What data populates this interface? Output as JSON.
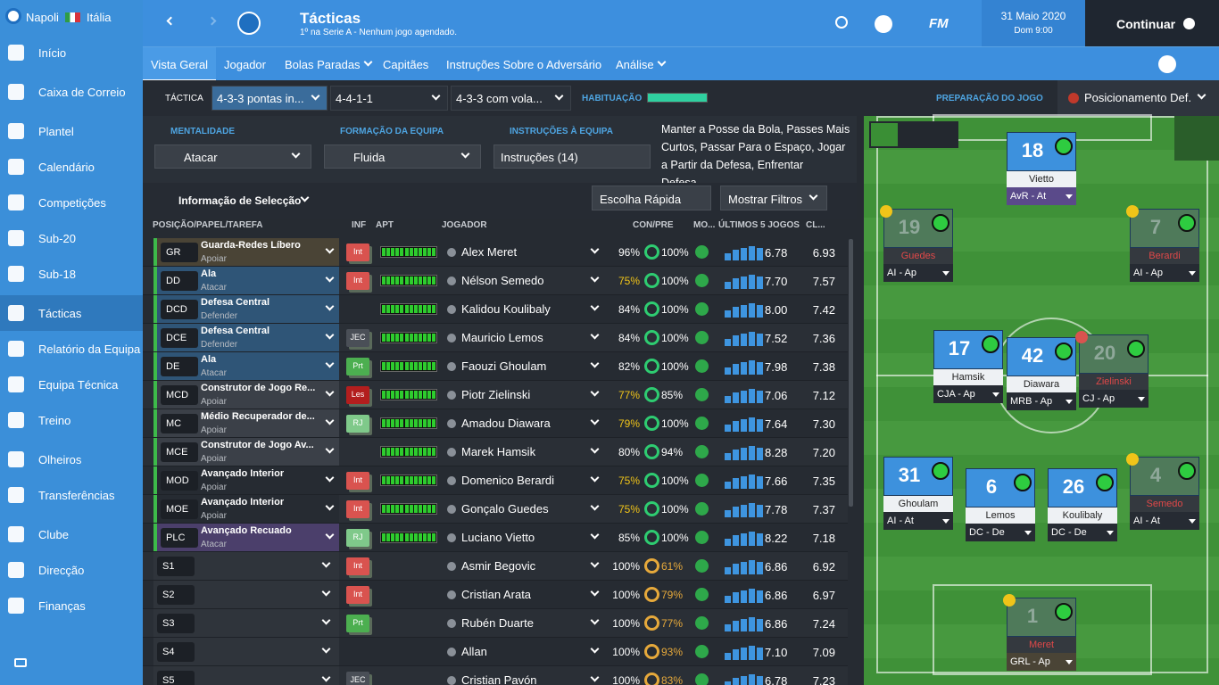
{
  "sidebar": {
    "club": "Napoli",
    "country": "Itália",
    "items": [
      "Início",
      "Caixa de Correio",
      "Plantel",
      "Calendário",
      "Competições",
      "Sub-20",
      "Sub-18",
      "Tácticas",
      "Relatório da Equipa",
      "Equipa Técnica",
      "Treino",
      "Olheiros",
      "Transferências",
      "Clube",
      "Direcção",
      "Finanças"
    ]
  },
  "header": {
    "title": "Tácticas",
    "subtitle": "1º na Serie A - Nenhum jogo agendado.",
    "brand": "FM",
    "date": "31 Maio 2020",
    "time": "Dom 9:00",
    "continue": "Continuar"
  },
  "tabs": [
    "Vista Geral",
    "Jogador",
    "Bolas Paradas",
    "Capitães",
    "Instruções Sobre o Adversário",
    "Análise"
  ],
  "tactic_bar": {
    "label": "TÁCTICA",
    "tactics": [
      "4-3-3 pontas in...",
      "4-4-1-1",
      "4-3-3 com vola..."
    ],
    "familiarity": "HABITUAÇÃO",
    "match_prep": "PREPARAÇÃO DO JOGO",
    "position": "Posicionamento Def."
  },
  "settings": {
    "mentality": {
      "label": "MENTALIDADE",
      "value": "Atacar"
    },
    "formation": {
      "label": "FORMAÇÃO DA EQUIPA",
      "value": "Fluida"
    },
    "instructions": {
      "label": "INSTRUÇÕES À EQUIPA",
      "value": "Instruções (14)"
    },
    "summary": "Manter a Posse da Bola, Passes Mais Curtos, Passar Para o Espaço, Jogar a Partir da Defesa, Enfrentar Defesa,..."
  },
  "selection": {
    "title": "Informação de Selecção",
    "quick_pick": "Escolha Rápida",
    "filters": "Mostrar Filtros"
  },
  "table": {
    "columns": [
      "POSIÇÃO/PAPEL/TAREFA",
      "INF",
      "APT",
      "JOGADOR",
      "CON/PRE",
      "MO...",
      "ÚLTIMOS 5 JOGOS",
      "CL..."
    ],
    "rows": [
      {
        "position": "GR",
        "role": "Guarda-Redes Líbero",
        "duty": "Apoiar",
        "info": "Int",
        "player": "Alex Meret",
        "condition": "96%",
        "sharpness": "100%",
        "average": "6.78",
        "rating": "6.93"
      },
      {
        "position": "DD",
        "role": "Ala",
        "duty": "Atacar",
        "info": "Int",
        "player": "Nélson Semedo",
        "condition": "75%",
        "sharpness": "100%",
        "average": "7.70",
        "rating": "7.57"
      },
      {
        "position": "DCD",
        "role": "Defesa Central",
        "duty": "Defender",
        "player": "Kalidou Koulibaly",
        "condition": "84%",
        "sharpness": "100%",
        "average": "8.00",
        "rating": "7.42"
      },
      {
        "position": "DCE",
        "role": "Defesa Central",
        "duty": "Defender",
        "info": "JEC",
        "player": "Mauricio Lemos",
        "condition": "84%",
        "sharpness": "100%",
        "average": "7.52",
        "rating": "7.36"
      },
      {
        "position": "DE",
        "role": "Ala",
        "duty": "Atacar",
        "info": "Prt",
        "player": "Faouzi Ghoulam",
        "condition": "82%",
        "sharpness": "100%",
        "average": "7.98",
        "rating": "7.38"
      },
      {
        "position": "MCD",
        "role": "Construtor de Jogo Re...",
        "duty": "Apoiar",
        "info": "Les",
        "player": "Piotr Zielinski",
        "condition": "77%",
        "sharpness": "85%",
        "average": "7.06",
        "rating": "7.12"
      },
      {
        "position": "MC",
        "role": "Médio Recuperador de...",
        "duty": "Apoiar",
        "info": "RJ",
        "player": "Amadou Diawara",
        "condition": "79%",
        "sharpness": "100%",
        "average": "7.64",
        "rating": "7.30"
      },
      {
        "position": "MCE",
        "role": "Construtor de Jogo Av...",
        "duty": "Apoiar",
        "player": "Marek Hamsik",
        "condition": "80%",
        "sharpness": "94%",
        "average": "8.28",
        "rating": "7.20"
      },
      {
        "position": "MOD",
        "role": "Avançado Interior",
        "duty": "Apoiar",
        "info": "Int",
        "player": "Domenico Berardi",
        "condition": "75%",
        "sharpness": "100%",
        "average": "7.66",
        "rating": "7.35"
      },
      {
        "position": "MOE",
        "role": "Avançado Interior",
        "duty": "Apoiar",
        "info": "Int",
        "player": "Gonçalo Guedes",
        "condition": "75%",
        "sharpness": "100%",
        "average": "7.78",
        "rating": "7.37"
      },
      {
        "position": "PLC",
        "role": "Avançado Recuado",
        "duty": "Atacar",
        "info": "RJ",
        "player": "Luciano Vietto",
        "condition": "85%",
        "sharpness": "100%",
        "average": "8.22",
        "rating": "7.18"
      },
      {
        "position": "S1",
        "info": "Int",
        "player": "Asmir Begovic",
        "condition": "100%",
        "sharpness": "61%",
        "average": "6.86",
        "rating": "6.92"
      },
      {
        "position": "S2",
        "info": "Int",
        "player": "Cristian Arata",
        "condition": "100%",
        "sharpness": "79%",
        "average": "6.86",
        "rating": "6.97"
      },
      {
        "position": "S3",
        "info": "Prt",
        "player": "Rubén Duarte",
        "condition": "100%",
        "sharpness": "77%",
        "average": "6.86",
        "rating": "7.24"
      },
      {
        "position": "S4",
        "player": "Allan",
        "condition": "100%",
        "sharpness": "93%",
        "average": "7.10",
        "rating": "7.09"
      },
      {
        "position": "S5",
        "info": "JEC",
        "player": "Cristian Pavón",
        "condition": "100%",
        "sharpness": "83%",
        "average": "6.78",
        "rating": "7.23"
      }
    ]
  },
  "pitch": {
    "players": [
      {
        "number": 18,
        "name": "Vietto",
        "role": "AvR - At"
      },
      {
        "number": 19,
        "name": "Guedes",
        "role": "AI - Ap"
      },
      {
        "number": 7,
        "name": "Berardi",
        "role": "AI - Ap"
      },
      {
        "number": 17,
        "name": "Hamsik",
        "role": "CJA - Ap"
      },
      {
        "number": 42,
        "name": "Diawara",
        "role": "MRB - Ap"
      },
      {
        "number": 20,
        "name": "Zielinski",
        "role": "CJ - Ap"
      },
      {
        "number": 31,
        "name": "Ghoulam",
        "role": "AI - At"
      },
      {
        "number": 6,
        "name": "Lemos",
        "role": "DC - De"
      },
      {
        "number": 26,
        "name": "Koulibaly",
        "role": "DC - De"
      },
      {
        "number": 4,
        "name": "Semedo",
        "role": "AI - At"
      },
      {
        "number": 1,
        "name": "Meret",
        "role": "GRL - Ap"
      }
    ]
  }
}
